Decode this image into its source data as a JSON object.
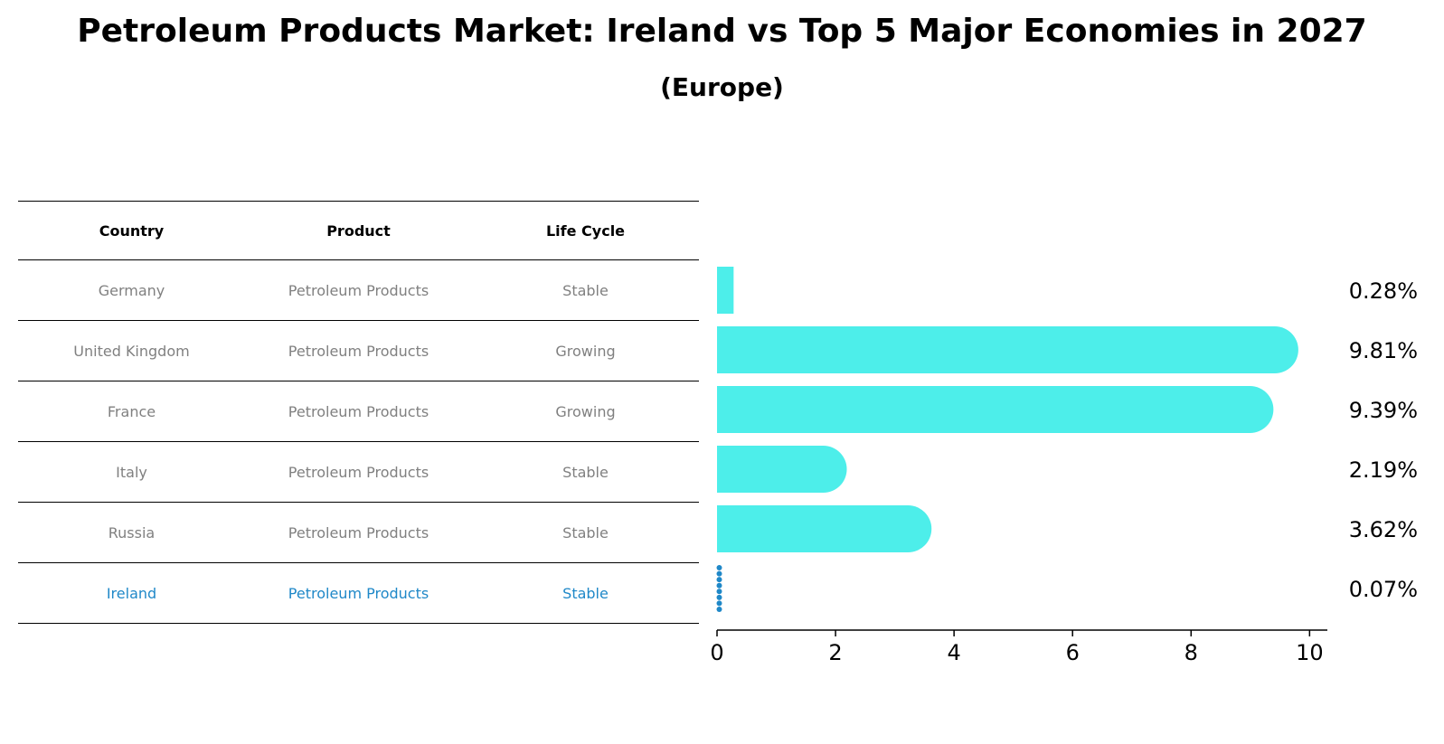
{
  "title": "Petroleum Products Market: Ireland vs Top 5 Major Economies in 2027",
  "subtitle": "(Europe)",
  "table": {
    "headers": [
      "Country",
      "Product",
      "Life Cycle"
    ],
    "rows": [
      [
        "Germany",
        "Petroleum Products",
        "Stable"
      ],
      [
        "United Kingdom",
        "Petroleum Products",
        "Growing"
      ],
      [
        "France",
        "Petroleum Products",
        "Growing"
      ],
      [
        "Italy",
        "Petroleum Products",
        "Stable"
      ],
      [
        "Russia",
        "Petroleum Products",
        "Stable"
      ],
      [
        "Ireland",
        "Petroleum Products",
        "Stable"
      ]
    ],
    "highlight_row": "Ireland"
  },
  "chart_data": {
    "type": "bar",
    "orientation": "horizontal",
    "categories": [
      "Germany",
      "United Kingdom",
      "France",
      "Italy",
      "Russia",
      "Ireland"
    ],
    "values": [
      0.28,
      9.81,
      9.39,
      2.19,
      3.62,
      0.07
    ],
    "value_labels": [
      "0.28%",
      "9.81%",
      "9.39%",
      "2.19%",
      "3.62%",
      "0.07%"
    ],
    "xlim": [
      0,
      10.3
    ],
    "xticks": [
      0,
      2,
      4,
      6,
      8,
      10
    ],
    "colors": {
      "bar": "#4deeea",
      "highlight": "#1f88c8"
    }
  }
}
